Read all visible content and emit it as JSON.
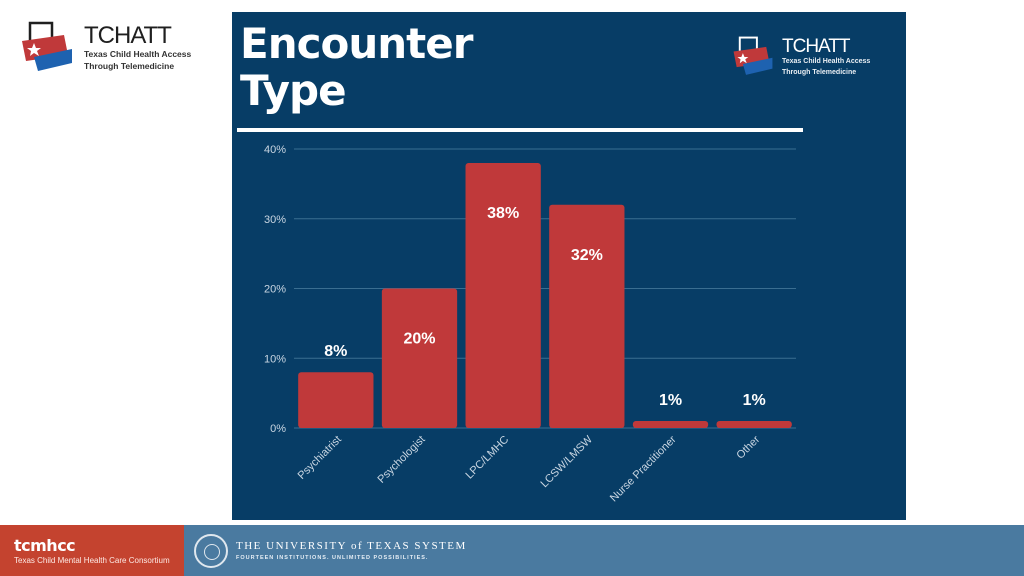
{
  "brand": {
    "tchatt_title": "TCHATT",
    "tchatt_line1": "Texas Child Health Access",
    "tchatt_line2": "Through Telemedicine"
  },
  "panel": {
    "title_line1": "Encounter",
    "title_line2": "Type"
  },
  "footer": {
    "tcmhcc_name": "tcmhcc",
    "tcmhcc_full": "Texas Child Mental Health Care Consortium",
    "ut_name": "THE UNIVERSITY of TEXAS SYSTEM",
    "ut_tagline": "FOURTEEN INSTITUTIONS. UNLIMITED POSSIBILITIES."
  },
  "colors": {
    "panel_bg": "#073d66",
    "bar": "#c0393a",
    "grid": "#3a6e91",
    "tick_text": "#c9d6e2",
    "label_text": "#ffffff"
  },
  "chart_data": {
    "type": "bar",
    "title": "Encounter Type",
    "categories": [
      "Psychiatrist",
      "Psychologist",
      "LPC/LMHC",
      "LCSW/LMSW",
      "Nurse Practitioner",
      "Other"
    ],
    "values": [
      8,
      20,
      38,
      32,
      1,
      1
    ],
    "data_labels": [
      "8%",
      "20%",
      "38%",
      "32%",
      "1%",
      "1%"
    ],
    "y_ticks": [
      0,
      10,
      20,
      30,
      40
    ],
    "y_tick_labels": [
      "0%",
      "10%",
      "20%",
      "30%",
      "40%"
    ],
    "ylim": [
      0,
      40
    ],
    "xlabel": "",
    "ylabel": "",
    "grid": true
  }
}
